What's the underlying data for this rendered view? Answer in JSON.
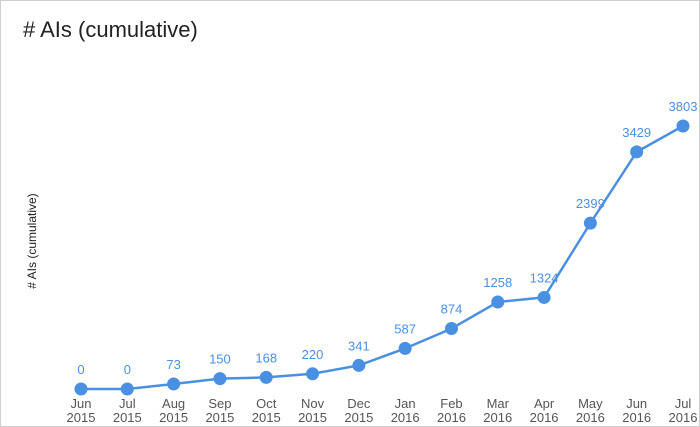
{
  "chart_data": {
    "type": "line",
    "title": "# AIs (cumulative)",
    "ylabel": "# AIs (cumulative)",
    "xlabel": "",
    "categories": [
      [
        "Jun",
        "2015"
      ],
      [
        "Jul",
        "2015"
      ],
      [
        "Aug",
        "2015"
      ],
      [
        "Sep",
        "2015"
      ],
      [
        "Oct",
        "2015"
      ],
      [
        "Nov",
        "2015"
      ],
      [
        "Dec",
        "2015"
      ],
      [
        "Jan",
        "2016"
      ],
      [
        "Feb",
        "2016"
      ],
      [
        "Mar",
        "2016"
      ],
      [
        "Apr",
        "2016"
      ],
      [
        "May",
        "2016"
      ],
      [
        "Jun",
        "2016"
      ],
      [
        "Jul",
        "2016"
      ]
    ],
    "series": [
      {
        "values": [
          0,
          0,
          73,
          150,
          168,
          220,
          341,
          587,
          874,
          1258,
          1324,
          2399,
          3429,
          3803
        ]
      }
    ],
    "ylim": [
      0,
      3803
    ],
    "grid": false,
    "data_labels": true,
    "colors": {
      "line": "#4a90e2",
      "point": "#4a90e2",
      "label": "#4a90e2"
    }
  }
}
